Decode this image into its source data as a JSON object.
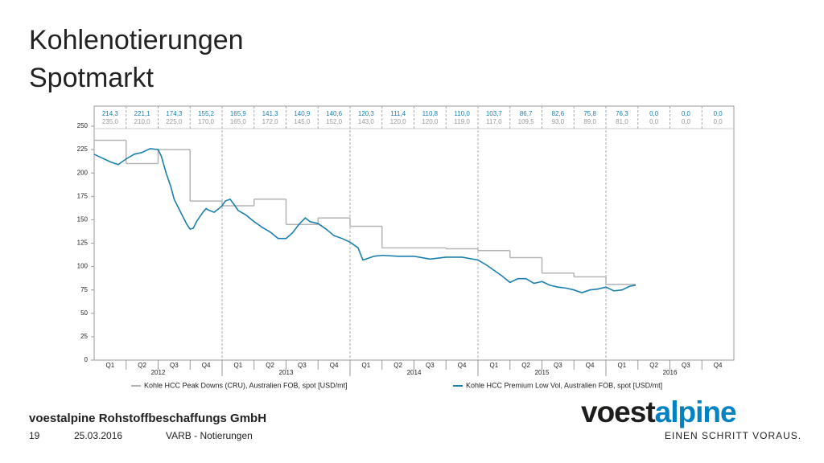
{
  "slide": {
    "title_lines": [
      "Kohlenotierungen",
      "Spotmarkt"
    ],
    "company": "voestalpine Rohstoffbeschaffungs GmbH",
    "page": "19",
    "date": "25.03.2016",
    "section": "VARB - Notierungen",
    "logo": {
      "part1": "voest",
      "part2": "alpine",
      "tagline": "EINEN SCHRITT VORAUS."
    }
  },
  "chart_data": {
    "type": "line",
    "categories": [
      "Q1",
      "Q2",
      "Q3",
      "Q4",
      "Q1",
      "Q2",
      "Q3",
      "Q4",
      "Q1",
      "Q2",
      "Q3",
      "Q4",
      "Q1",
      "Q2",
      "Q3",
      "Q4",
      "Q1",
      "Q2",
      "Q3",
      "Q4"
    ],
    "years": [
      "2012",
      "2013",
      "2014",
      "2015",
      "2016"
    ],
    "xlim": [
      0,
      20
    ],
    "ylim": [
      0,
      250
    ],
    "yticks": [
      0,
      25,
      50,
      75,
      100,
      125,
      150,
      175,
      200,
      225,
      250
    ],
    "table_rows": [
      [
        "214,3",
        "221,1",
        "174,3",
        "155,2",
        "165,9",
        "141,3",
        "140,9",
        "140,6",
        "120,3",
        "111,4",
        "110,8",
        "110,0",
        "103,7",
        "86,7",
        "82,6",
        "75,8",
        "76,3",
        "0,0",
        "0,0",
        "0,0"
      ],
      [
        "235,0",
        "210,0",
        "225,0",
        "170,0",
        "165,0",
        "172,0",
        "145,0",
        "152,0",
        "143,0",
        "120,0",
        "120,0",
        "119,0",
        "117,0",
        "109,5",
        "93,0",
        "89,0",
        "81,0",
        "0,0",
        "0,0",
        "0,0"
      ]
    ],
    "series": [
      {
        "name": "Kohle HCC Peak Downs (CRU), Australien FOB, spot [USD/mt]",
        "color": "#b4b4b4",
        "step": true,
        "x": [
          0,
          1,
          2,
          3,
          4,
          5,
          6,
          7,
          8,
          9,
          10,
          11,
          12,
          13,
          14,
          15,
          16
        ],
        "values": [
          235,
          210,
          225,
          170,
          165,
          172,
          145,
          152,
          143,
          120,
          120,
          119,
          117,
          109.5,
          93,
          89,
          81
        ]
      },
      {
        "name": "Kohle HCC Premium Low Vol, Australien FOB, spot [USD/mt]",
        "color": "#1a7fae",
        "x": [
          0,
          0.25,
          0.5,
          0.75,
          1,
          1.25,
          1.5,
          1.75,
          2,
          2.1,
          2.25,
          2.4,
          2.5,
          2.75,
          2.9,
          3,
          3.1,
          3.2,
          3.4,
          3.5,
          3.6,
          3.75,
          3.9,
          4,
          4.1,
          4.25,
          4.4,
          4.5,
          4.75,
          5,
          5.25,
          5.5,
          5.75,
          6,
          6.2,
          6.4,
          6.6,
          6.75,
          7,
          7.25,
          7.5,
          7.75,
          8,
          8.25,
          8.4,
          8.5,
          8.75,
          9,
          9.5,
          10,
          10.5,
          11,
          11.5,
          12,
          12.25,
          12.5,
          12.75,
          13,
          13.25,
          13.5,
          13.75,
          14,
          14.25,
          14.5,
          14.75,
          15,
          15.25,
          15.5,
          15.75,
          16,
          16.25,
          16.5,
          16.75,
          16.93
        ],
        "values": [
          220,
          216,
          212,
          209,
          215,
          220,
          222,
          226,
          225,
          218,
          200,
          185,
          172,
          155,
          145,
          140,
          141,
          148,
          158,
          162,
          160,
          158,
          162,
          165,
          170,
          172,
          165,
          160,
          155,
          148,
          142,
          137,
          130,
          130,
          136,
          145,
          152,
          148,
          146,
          140,
          133,
          130,
          126,
          120,
          107,
          108,
          111,
          112,
          111,
          111,
          108,
          110,
          110,
          107,
          102,
          96,
          90,
          83,
          87,
          87,
          82,
          84,
          80,
          78,
          77,
          75,
          72,
          75,
          76,
          78,
          74,
          75,
          79,
          80
        ]
      }
    ]
  }
}
